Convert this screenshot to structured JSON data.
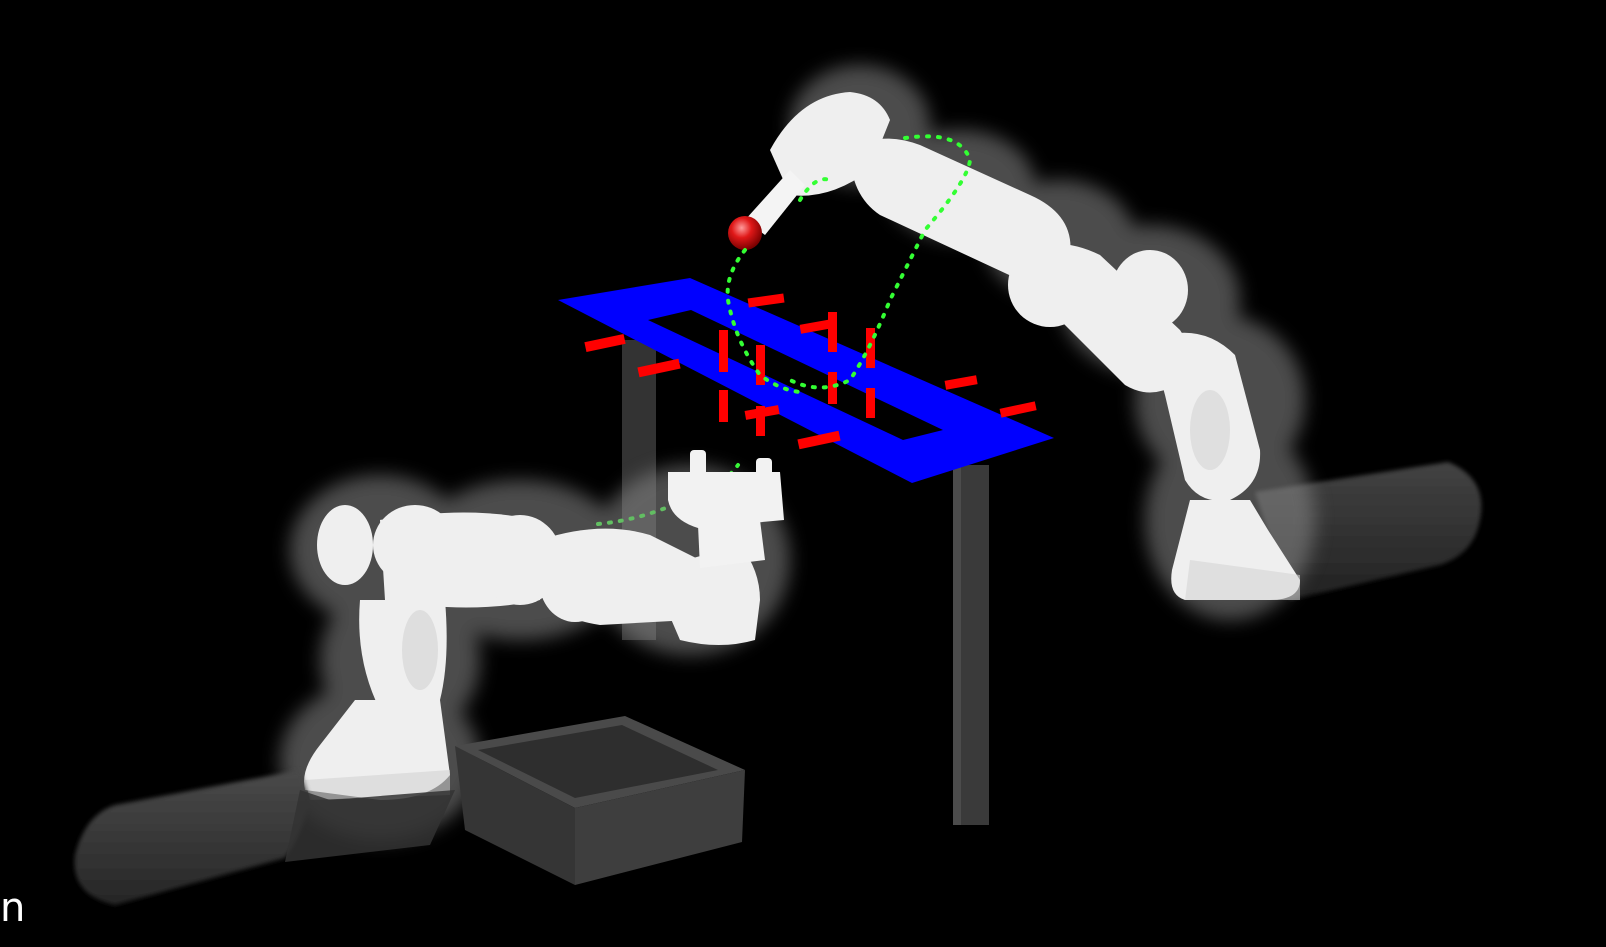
{
  "scene": {
    "background_color": "#000000",
    "robot_color": "#eeeeee",
    "robot_halo_color": "#8a8a8a",
    "table_frame_color": "#0000ff",
    "marker_color": "#ff0000",
    "trajectory_color": "#33ff33",
    "target_sphere_color": "#e01818",
    "table_leg_color": "#3a3a3a",
    "rail_color": "#3c3c3c",
    "bin_color": "#3e3e3e",
    "objects": [
      "left-robot-arm",
      "right-robot-arm",
      "blue-table-frame",
      "red-grid-markers",
      "green-trajectory",
      "red-target-sphere",
      "storage-bin",
      "left-rail",
      "right-rail"
    ]
  },
  "caption": {
    "text": "n"
  }
}
